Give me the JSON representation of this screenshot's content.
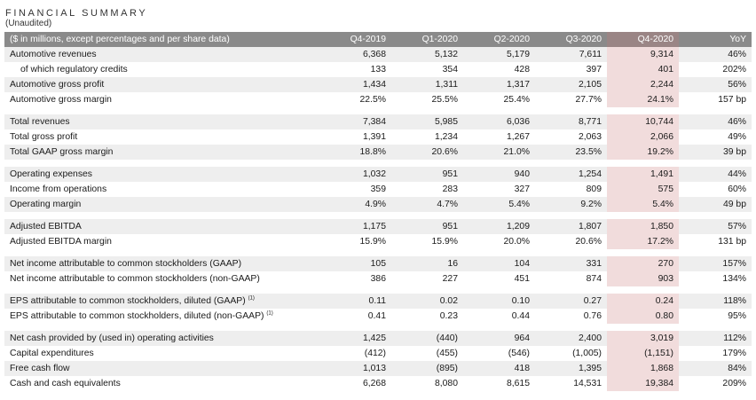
{
  "title": "FINANCIAL SUMMARY",
  "subtitle": "(Unaudited)",
  "header": [
    "($ in millions, except percentages and per share data)",
    "Q4-2019",
    "Q1-2020",
    "Q2-2020",
    "Q3-2020",
    "Q4-2020",
    "YoY"
  ],
  "groups": [
    [
      {
        "label": "Automotive revenues",
        "values": [
          "6,368",
          "5,132",
          "5,179",
          "7,611",
          "9,314",
          "46%"
        ]
      },
      {
        "label": "of which regulatory credits",
        "indent": true,
        "values": [
          "133",
          "354",
          "428",
          "397",
          "401",
          "202%"
        ]
      },
      {
        "label": "Automotive gross profit",
        "values": [
          "1,434",
          "1,311",
          "1,317",
          "2,105",
          "2,244",
          "56%"
        ]
      },
      {
        "label": "Automotive gross margin",
        "values": [
          "22.5%",
          "25.5%",
          "25.4%",
          "27.7%",
          "24.1%",
          "157 bp"
        ]
      }
    ],
    [
      {
        "label": "Total revenues",
        "values": [
          "7,384",
          "5,985",
          "6,036",
          "8,771",
          "10,744",
          "46%"
        ]
      },
      {
        "label": "Total gross profit",
        "values": [
          "1,391",
          "1,234",
          "1,267",
          "2,063",
          "2,066",
          "49%"
        ]
      },
      {
        "label": "Total GAAP gross margin",
        "values": [
          "18.8%",
          "20.6%",
          "21.0%",
          "23.5%",
          "19.2%",
          "39 bp"
        ]
      }
    ],
    [
      {
        "label": "Operating expenses",
        "values": [
          "1,032",
          "951",
          "940",
          "1,254",
          "1,491",
          "44%"
        ]
      },
      {
        "label": "Income from operations",
        "values": [
          "359",
          "283",
          "327",
          "809",
          "575",
          "60%"
        ]
      },
      {
        "label": "Operating margin",
        "values": [
          "4.9%",
          "4.7%",
          "5.4%",
          "9.2%",
          "5.4%",
          "49 bp"
        ]
      }
    ],
    [
      {
        "label": "Adjusted EBITDA",
        "values": [
          "1,175",
          "951",
          "1,209",
          "1,807",
          "1,850",
          "57%"
        ]
      },
      {
        "label": "Adjusted EBITDA margin",
        "values": [
          "15.9%",
          "15.9%",
          "20.0%",
          "20.6%",
          "17.2%",
          "131 bp"
        ]
      }
    ],
    [
      {
        "label": "Net income attributable to common stockholders (GAAP)",
        "values": [
          "105",
          "16",
          "104",
          "331",
          "270",
          "157%"
        ]
      },
      {
        "label": "Net income attributable to common stockholders (non-GAAP)",
        "values": [
          "386",
          "227",
          "451",
          "874",
          "903",
          "134%"
        ]
      }
    ],
    [
      {
        "label": "EPS attributable to common stockholders, diluted (GAAP)",
        "sup": "(1)",
        "values": [
          "0.11",
          "0.02",
          "0.10",
          "0.27",
          "0.24",
          "118%"
        ]
      },
      {
        "label": "EPS attributable to common stockholders, diluted (non-GAAP)",
        "sup": "(1)",
        "values": [
          "0.41",
          "0.23",
          "0.44",
          "0.76",
          "0.80",
          "95%"
        ]
      }
    ],
    [
      {
        "label": "Net cash provided by (used in) operating activities",
        "values": [
          "1,425",
          "(440)",
          "964",
          "2,400",
          "3,019",
          "112%"
        ]
      },
      {
        "label": "Capital expenditures",
        "values": [
          "(412)",
          "(455)",
          "(546)",
          "(1,005)",
          "(1,151)",
          "179%"
        ]
      },
      {
        "label": "Free cash flow",
        "values": [
          "1,013",
          "(895)",
          "418",
          "1,395",
          "1,868",
          "84%"
        ]
      },
      {
        "label": "Cash and cash equivalents",
        "values": [
          "6,268",
          "8,080",
          "8,615",
          "14,531",
          "19,384",
          "209%"
        ]
      }
    ]
  ]
}
